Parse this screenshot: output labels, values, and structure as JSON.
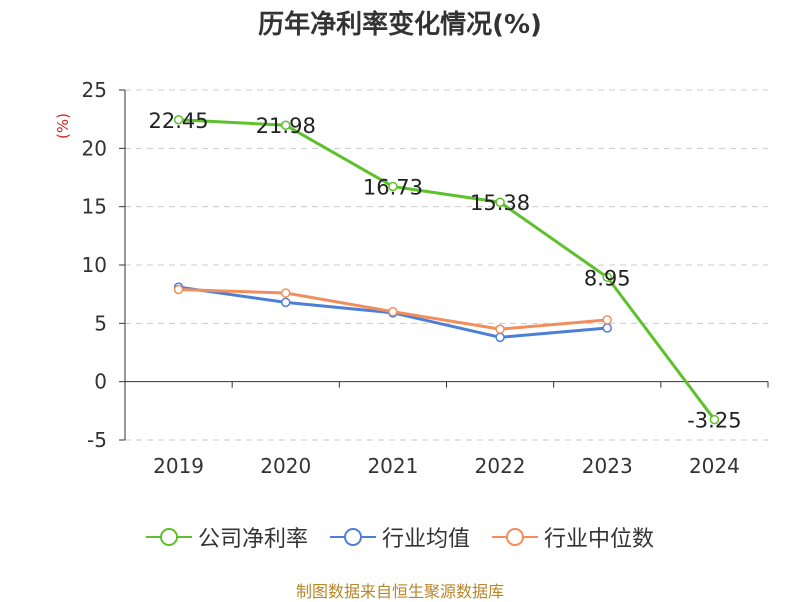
{
  "chart_data": {
    "type": "line",
    "title": "历年净利率变化情况(%)",
    "ylabel": "(%)",
    "categories": [
      "2019",
      "2020",
      "2021",
      "2022",
      "2023",
      "2024"
    ],
    "ylim": [
      -5,
      25
    ],
    "yticks": [
      25,
      20,
      15,
      10,
      5,
      0,
      -5
    ],
    "grid": true,
    "legend_position": "bottom",
    "series": [
      {
        "name": "公司净利率",
        "color": "#5cc12b",
        "values": [
          22.45,
          21.98,
          16.73,
          15.38,
          8.95,
          -3.25
        ],
        "labels": [
          "22.45",
          "21.98",
          "16.73",
          "15.38",
          "8.95",
          "-3.25"
        ]
      },
      {
        "name": "行业均值",
        "color": "#4e7fd8",
        "values": [
          8.1,
          6.8,
          5.9,
          3.8,
          4.6,
          null
        ]
      },
      {
        "name": "行业中位数",
        "color": "#f28e5c",
        "values": [
          7.9,
          7.6,
          6.0,
          4.5,
          5.3,
          null
        ]
      }
    ]
  },
  "source": "制图数据来自恒生聚源数据库"
}
